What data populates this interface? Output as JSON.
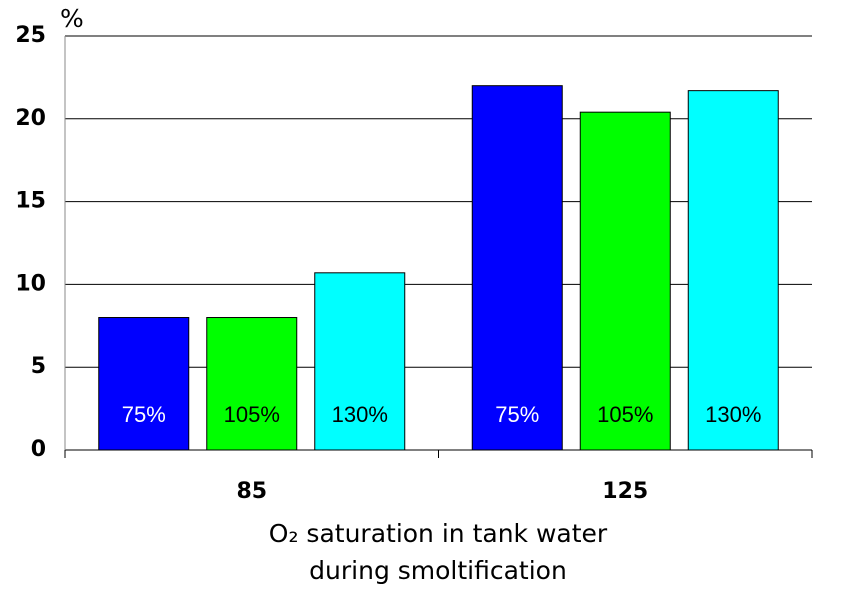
{
  "chart_data": {
    "type": "bar",
    "ylabel": "%",
    "xlabel": [
      "O₂ saturation in tank water",
      "during smoltification"
    ],
    "categories": [
      "85",
      "125"
    ],
    "series": [
      {
        "name": "75%",
        "color": "#0000ff",
        "values": [
          8,
          22
        ]
      },
      {
        "name": "105%",
        "color": "#00ff00",
        "values": [
          8,
          20.4
        ]
      },
      {
        "name": "130%",
        "color": "#00ffff",
        "values": [
          10.7,
          21.7
        ]
      }
    ],
    "ylim": [
      0,
      25
    ],
    "yticks": [
      0,
      5,
      10,
      15,
      20,
      25
    ],
    "grid": true
  }
}
